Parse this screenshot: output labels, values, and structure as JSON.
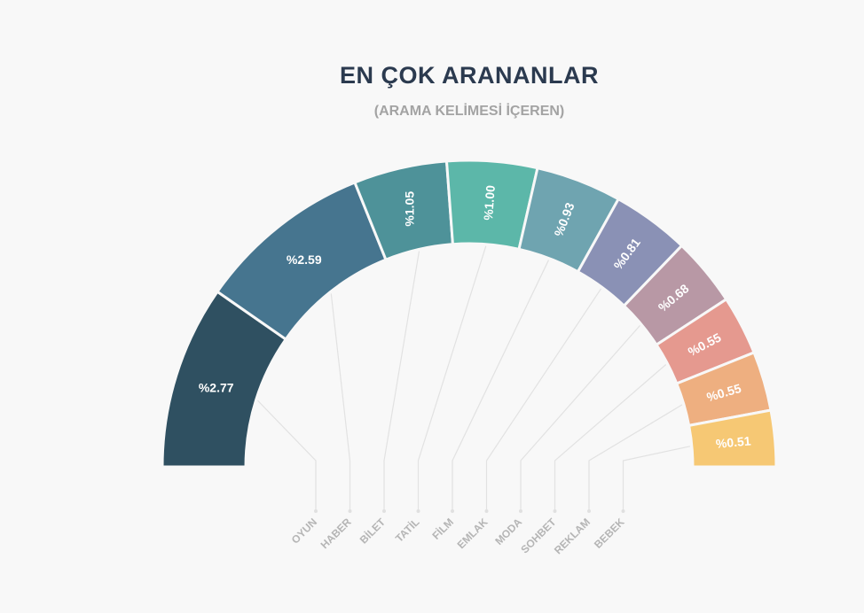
{
  "chart_data": {
    "type": "pie",
    "variant": "semicircle",
    "title": "EN ÇOK ARANANLAR",
    "subtitle": "(ARAMA KELİMESİ İÇEREN)",
    "categories": [
      "OYUN",
      "HABER",
      "BİLET",
      "TATİL",
      "FİLM",
      "EMLAK",
      "MODA",
      "SOHBET",
      "REKLAM",
      "BEBEK"
    ],
    "values": [
      2.77,
      2.59,
      1.05,
      1.0,
      0.93,
      0.81,
      0.68,
      0.55,
      0.55,
      0.51
    ],
    "value_labels": [
      "%2.77",
      "%2.59",
      "%1.05",
      "%1.00",
      "%0.93",
      "%0.81",
      "%0.68",
      "%0.55",
      "%0.55",
      "%0.51"
    ],
    "colors": [
      "#2f5061",
      "#46758f",
      "#4e9299",
      "#5cb7a9",
      "#6fa4b0",
      "#8a91b5",
      "#b898a5",
      "#e5998f",
      "#eeaf80",
      "#f6c874"
    ],
    "legend": "none"
  }
}
